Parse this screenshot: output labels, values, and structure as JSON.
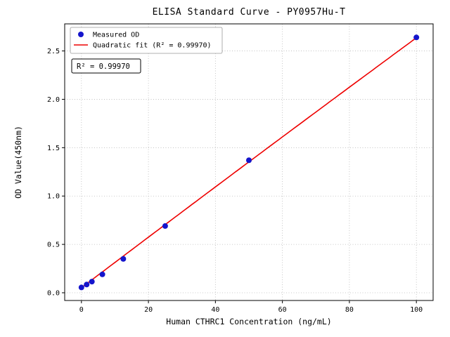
{
  "window": {
    "background_color": "#ffffff"
  },
  "chart_data": {
    "type": "scatter",
    "title": "ELISA Standard Curve - PY0957Hu-T",
    "xlabel": "Human CTHRC1 Concentration (ng/mL)",
    "ylabel": "OD Value(450nm)",
    "xlim": [
      -5,
      105
    ],
    "ylim": [
      -0.08,
      2.78
    ],
    "xticks": [
      0,
      20,
      40,
      60,
      80,
      100
    ],
    "yticks": [
      0,
      0.5,
      1,
      1.5,
      2,
      2.5
    ],
    "ytick_labels": [
      "0.0",
      "0.5",
      "1.0",
      "1.5",
      "2.0",
      "2.5"
    ],
    "grid": true,
    "legend_position": "upper-left",
    "series": [
      {
        "name": "Measured OD",
        "type": "scatter",
        "marker": "circle",
        "color": "#1515cc",
        "x": [
          0,
          1.56,
          3.12,
          6.25,
          12.5,
          25,
          50,
          100
        ],
        "y": [
          0.055,
          0.085,
          0.115,
          0.19,
          0.35,
          0.69,
          1.37,
          2.64
        ]
      },
      {
        "name": "Quadratic fit (R² = 0.99970)",
        "type": "line",
        "color": "#ee0000",
        "fit_coefficients": {
          "a": 0.052,
          "b": 0.0262,
          "c": -3.6e-06
        },
        "x_range": [
          0,
          100
        ]
      }
    ],
    "annotation": "R² = 0.99970",
    "r_squared": 0.9997
  }
}
